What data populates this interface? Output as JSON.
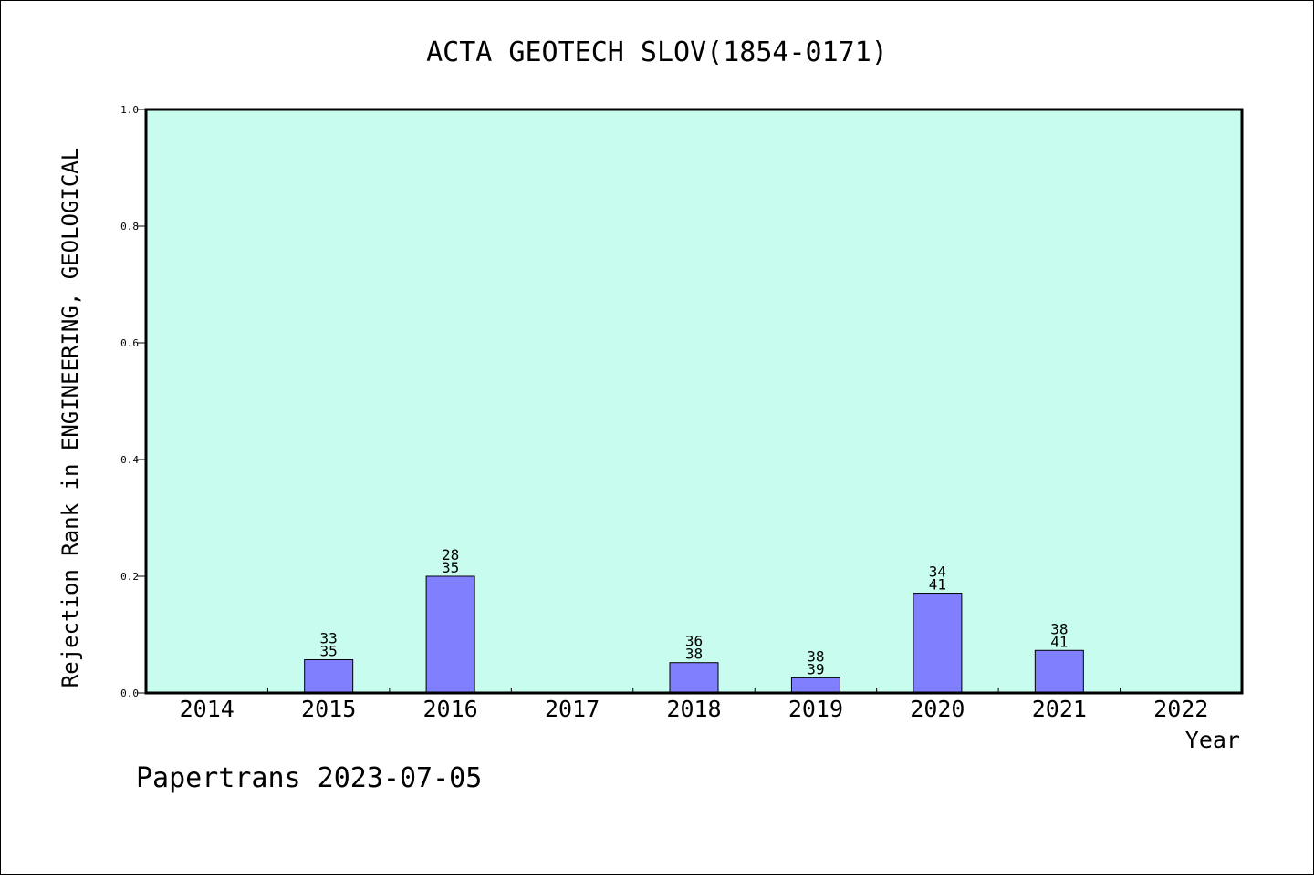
{
  "chart_data": {
    "type": "bar",
    "title": "ACTA GEOTECH SLOV(1854-0171)",
    "xlabel": "Year",
    "ylabel": "Rejection Rank in ENGINEERING, GEOLOGICAL",
    "ylim": [
      0,
      1.0
    ],
    "yticks": [
      "0.0",
      "0.2",
      "0.4",
      "0.6",
      "0.8",
      "1.0"
    ],
    "categories": [
      "2014",
      "2015",
      "2016",
      "2017",
      "2018",
      "2019",
      "2020",
      "2021",
      "2022"
    ],
    "values": [
      0,
      0.057,
      0.2,
      0,
      0.052,
      0.026,
      0.171,
      0.073,
      0
    ],
    "bar_labels": [
      null,
      [
        "33",
        "35"
      ],
      [
        "28",
        "35"
      ],
      null,
      [
        "36",
        "38"
      ],
      [
        "38",
        "39"
      ],
      [
        "34",
        "41"
      ],
      [
        "38",
        "41"
      ],
      null
    ],
    "grid": false,
    "colors": {
      "plot_background": "#c8fcee",
      "bar_fill": "#8080ff",
      "bar_stroke": "#000000"
    }
  },
  "footer": "Papertrans 2023-07-05"
}
